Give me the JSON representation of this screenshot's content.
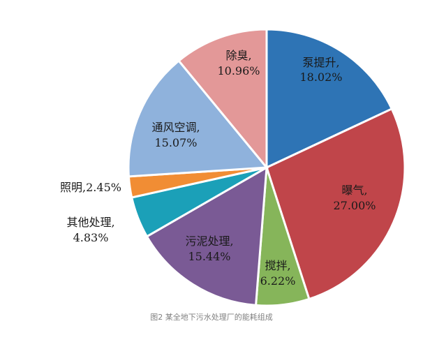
{
  "caption": "图2 某全地下污水处理厂的能耗组成",
  "chart_data": {
    "type": "pie",
    "slices": [
      {
        "name": "泵提升",
        "value": 18.02,
        "label": "18.02%",
        "color": "#2e74b5"
      },
      {
        "name": "曝气",
        "value": 27.0,
        "label": "27.00%",
        "color": "#c0454a"
      },
      {
        "name": "搅拌",
        "value": 6.22,
        "label": "6.22%",
        "color": "#86b55a"
      },
      {
        "name": "污泥处理",
        "value": 15.44,
        "label": "15.44%",
        "color": "#7a5a95"
      },
      {
        "name": "其他处理",
        "value": 4.83,
        "label": "4.83%",
        "color": "#1ba0b8"
      },
      {
        "name": "照明",
        "value": 2.45,
        "label": "2.45%",
        "color": "#f18d34"
      },
      {
        "name": "通风空调",
        "value": 15.07,
        "label": "15.07%",
        "color": "#8fb2dc"
      },
      {
        "name": "除臭",
        "value": 10.96,
        "label": "10.96%",
        "color": "#e39898"
      }
    ]
  }
}
